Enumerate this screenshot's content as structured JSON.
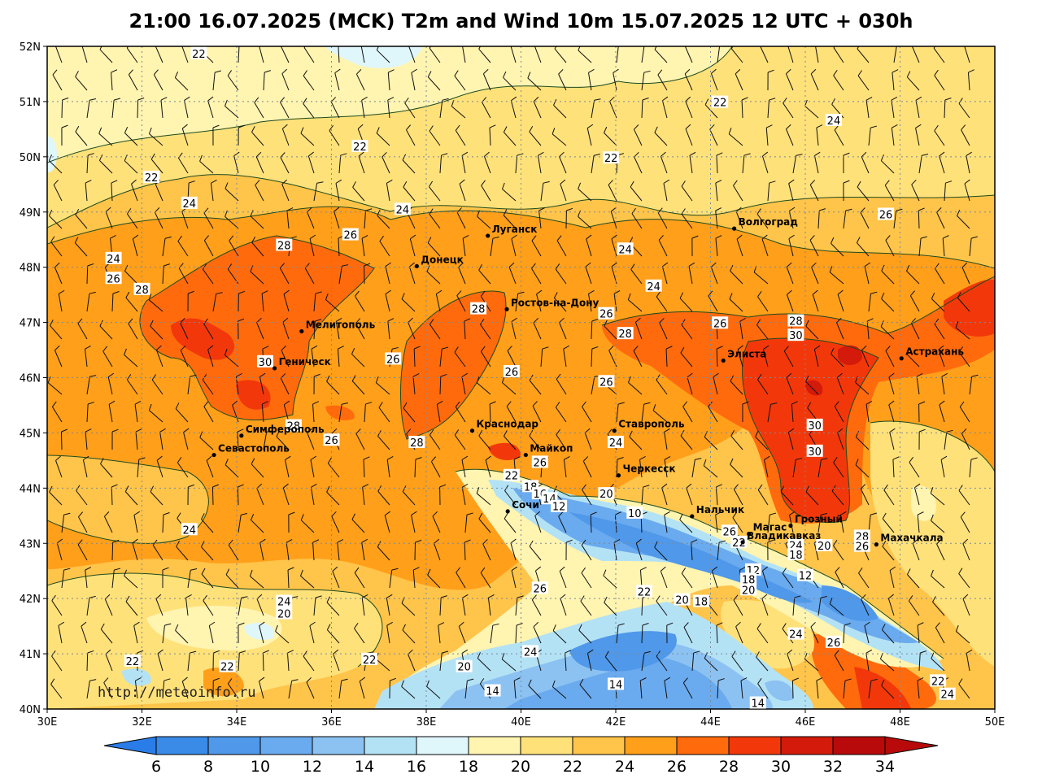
{
  "title": "21:00 16.07.2025 (MCK) T2m and Wind 10m 15.07.2025 12 UTC + 030h",
  "watermark": "http://meteoinfo.ru",
  "lat_labels": [
    "52N",
    "51N",
    "50N",
    "49N",
    "48N",
    "47N",
    "46N",
    "45N",
    "44N",
    "43N",
    "42N",
    "41N",
    "40N"
  ],
  "lon_labels": [
    "30E",
    "32E",
    "34E",
    "36E",
    "38E",
    "40E",
    "42E",
    "44E",
    "46E",
    "48E",
    "50E"
  ],
  "colorbar": {
    "labels": [
      "6",
      "8",
      "10",
      "12",
      "14",
      "16",
      "18",
      "20",
      "22",
      "24",
      "26",
      "28",
      "30",
      "32",
      "34"
    ],
    "colors": [
      "#2a7de8",
      "#3a8ae8",
      "#4f98ea",
      "#6aaaee",
      "#8cc2f2",
      "#b4e2f5",
      "#dff6fb",
      "#fff4b0",
      "#ffe17a",
      "#ffc44a",
      "#ff9f1a",
      "#ff6a0d",
      "#f2380a",
      "#d41a0a",
      "#b80a0a"
    ]
  },
  "cities": [
    {
      "name": "Луганск",
      "lon": 39.3,
      "lat": 48.57
    },
    {
      "name": "Донецк",
      "lon": 37.8,
      "lat": 48.02
    },
    {
      "name": "Волгоград",
      "lon": 44.5,
      "lat": 48.7
    },
    {
      "name": "Ростов-на-Дону",
      "lon": 39.7,
      "lat": 47.24
    },
    {
      "name": "Мелитополь",
      "lon": 35.37,
      "lat": 46.84
    },
    {
      "name": "Элиста",
      "lon": 44.27,
      "lat": 46.31
    },
    {
      "name": "Астрахань",
      "lon": 48.03,
      "lat": 46.35
    },
    {
      "name": "Геническ",
      "lon": 34.8,
      "lat": 46.17
    },
    {
      "name": "Краснодар",
      "lon": 38.97,
      "lat": 45.04
    },
    {
      "name": "Ставрополь",
      "lon": 41.97,
      "lat": 45.04
    },
    {
      "name": "Симферополь",
      "lon": 34.1,
      "lat": 44.95
    },
    {
      "name": "Майкоп",
      "lon": 40.1,
      "lat": 44.6
    },
    {
      "name": "Севастополь",
      "lon": 33.52,
      "lat": 44.6
    },
    {
      "name": "Черкесск",
      "lon": 42.06,
      "lat": 44.23
    },
    {
      "name": "Сочи",
      "lon": 39.72,
      "lat": 43.58
    },
    {
      "name": "Нальчик",
      "lon": 43.61,
      "lat": 43.49
    },
    {
      "name": "Магас",
      "lon": 44.81,
      "lat": 43.17
    },
    {
      "name": "Грозный",
      "lon": 45.69,
      "lat": 43.32
    },
    {
      "name": "Владикавказ",
      "lon": 44.68,
      "lat": 43.02
    },
    {
      "name": "Махачкала",
      "lon": 47.5,
      "lat": 42.98
    }
  ],
  "isolines": [
    {
      "v": "22",
      "lon": 33.2,
      "lat": 51.87
    },
    {
      "v": "22",
      "lon": 44.2,
      "lat": 50.99
    },
    {
      "v": "24",
      "lon": 46.6,
      "lat": 50.66
    },
    {
      "v": "22",
      "lon": 36.6,
      "lat": 50.19
    },
    {
      "v": "22",
      "lon": 41.9,
      "lat": 49.98
    },
    {
      "v": "22",
      "lon": 32.2,
      "lat": 49.63
    },
    {
      "v": "24",
      "lon": 33.0,
      "lat": 49.16
    },
    {
      "v": "24",
      "lon": 37.5,
      "lat": 49.05
    },
    {
      "v": "26",
      "lon": 47.7,
      "lat": 48.96
    },
    {
      "v": "28",
      "lon": 35.0,
      "lat": 48.4
    },
    {
      "v": "26",
      "lon": 36.4,
      "lat": 48.59
    },
    {
      "v": "24",
      "lon": 42.2,
      "lat": 48.33
    },
    {
      "v": "24",
      "lon": 31.4,
      "lat": 48.16
    },
    {
      "v": "24",
      "lon": 42.8,
      "lat": 47.66
    },
    {
      "v": "26",
      "lon": 31.4,
      "lat": 47.8
    },
    {
      "v": "28",
      "lon": 32.0,
      "lat": 47.6
    },
    {
      "v": "28",
      "lon": 39.1,
      "lat": 47.25
    },
    {
      "v": "26",
      "lon": 41.8,
      "lat": 47.16
    },
    {
      "v": "28",
      "lon": 45.8,
      "lat": 47.03
    },
    {
      "v": "26",
      "lon": 44.2,
      "lat": 46.99
    },
    {
      "v": "28",
      "lon": 42.2,
      "lat": 46.8
    },
    {
      "v": "30",
      "lon": 45.8,
      "lat": 46.77
    },
    {
      "v": "26",
      "lon": 37.3,
      "lat": 46.34
    },
    {
      "v": "30",
      "lon": 34.6,
      "lat": 46.29
    },
    {
      "v": "26",
      "lon": 39.8,
      "lat": 46.11
    },
    {
      "v": "26",
      "lon": 41.8,
      "lat": 45.93
    },
    {
      "v": "30",
      "lon": 46.2,
      "lat": 45.14
    },
    {
      "v": "28",
      "lon": 35.2,
      "lat": 45.13
    },
    {
      "v": "26",
      "lon": 36.0,
      "lat": 44.87
    },
    {
      "v": "28",
      "lon": 37.8,
      "lat": 44.83
    },
    {
      "v": "30",
      "lon": 46.2,
      "lat": 44.67
    },
    {
      "v": "24",
      "lon": 42.0,
      "lat": 44.83
    },
    {
      "v": "26",
      "lon": 40.4,
      "lat": 44.47
    },
    {
      "v": "22",
      "lon": 39.8,
      "lat": 44.23
    },
    {
      "v": "18",
      "lon": 40.2,
      "lat": 44.03
    },
    {
      "v": "16",
      "lon": 40.4,
      "lat": 43.9
    },
    {
      "v": "20",
      "lon": 41.8,
      "lat": 43.9
    },
    {
      "v": "14",
      "lon": 40.6,
      "lat": 43.81
    },
    {
      "v": "12",
      "lon": 40.8,
      "lat": 43.67
    },
    {
      "v": "10",
      "lon": 42.4,
      "lat": 43.55
    },
    {
      "v": "26",
      "lon": 44.4,
      "lat": 43.22
    },
    {
      "v": "22",
      "lon": 44.6,
      "lat": 43.02
    },
    {
      "v": "24",
      "lon": 45.8,
      "lat": 42.97
    },
    {
      "v": "20",
      "lon": 46.4,
      "lat": 42.96
    },
    {
      "v": "28",
      "lon": 47.2,
      "lat": 43.13
    },
    {
      "v": "26",
      "lon": 47.2,
      "lat": 42.95
    },
    {
      "v": "18",
      "lon": 45.8,
      "lat": 42.8
    },
    {
      "v": "12",
      "lon": 44.9,
      "lat": 42.52
    },
    {
      "v": "12",
      "lon": 46.0,
      "lat": 42.42
    },
    {
      "v": "18",
      "lon": 44.8,
      "lat": 42.35
    },
    {
      "v": "20",
      "lon": 44.8,
      "lat": 42.16
    },
    {
      "v": "22",
      "lon": 42.6,
      "lat": 42.13
    },
    {
      "v": "20",
      "lon": 43.4,
      "lat": 41.98
    },
    {
      "v": "18",
      "lon": 43.8,
      "lat": 41.95
    },
    {
      "v": "26",
      "lon": 40.4,
      "lat": 42.19
    },
    {
      "v": "24",
      "lon": 35.0,
      "lat": 41.95
    },
    {
      "v": "20",
      "lon": 35.0,
      "lat": 41.73
    },
    {
      "v": "24",
      "lon": 45.8,
      "lat": 41.36
    },
    {
      "v": "26",
      "lon": 46.6,
      "lat": 41.21
    },
    {
      "v": "24",
      "lon": 40.2,
      "lat": 41.04
    },
    {
      "v": "22",
      "lon": 31.8,
      "lat": 40.87
    },
    {
      "v": "22",
      "lon": 33.8,
      "lat": 40.77
    },
    {
      "v": "22",
      "lon": 36.8,
      "lat": 40.9
    },
    {
      "v": "20",
      "lon": 38.8,
      "lat": 40.77
    },
    {
      "v": "14",
      "lon": 39.4,
      "lat": 40.33
    },
    {
      "v": "14",
      "lon": 42.0,
      "lat": 40.45
    },
    {
      "v": "14",
      "lon": 45.0,
      "lat": 40.11
    },
    {
      "v": "22",
      "lon": 48.8,
      "lat": 40.51
    },
    {
      "v": "24",
      "lon": 49.0,
      "lat": 40.27
    },
    {
      "v": "24",
      "lon": 33.0,
      "lat": 43.25
    }
  ]
}
